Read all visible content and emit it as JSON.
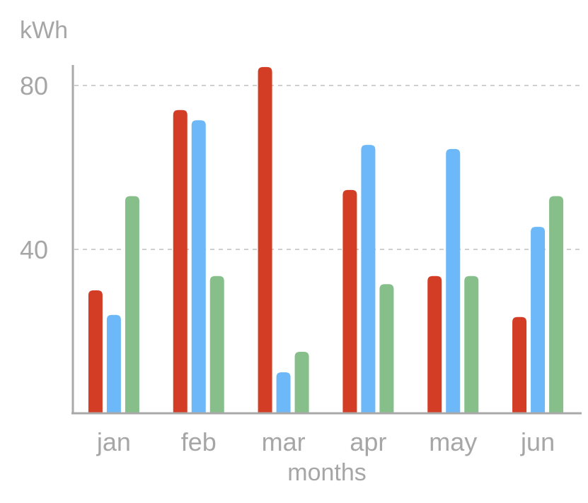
{
  "chart_data": {
    "type": "bar",
    "ylabel": "kWh",
    "xlabel": "months",
    "categories": [
      "jan",
      "feb",
      "mar",
      "apr",
      "may",
      "jun"
    ],
    "ylim": [
      0,
      84
    ],
    "yticks": [
      40,
      80
    ],
    "grid": "horizontal-dashed",
    "series": [
      {
        "color": "#d43d25",
        "values": [
          30,
          74,
          84.5,
          54.5,
          33.5,
          23.5
        ]
      },
      {
        "color": "#6db8f8",
        "values": [
          24,
          71.5,
          10,
          65.5,
          64.5,
          45.5
        ]
      },
      {
        "color": "#86bf8a",
        "values": [
          53,
          33.5,
          15,
          31.5,
          33.5,
          53
        ]
      }
    ]
  }
}
